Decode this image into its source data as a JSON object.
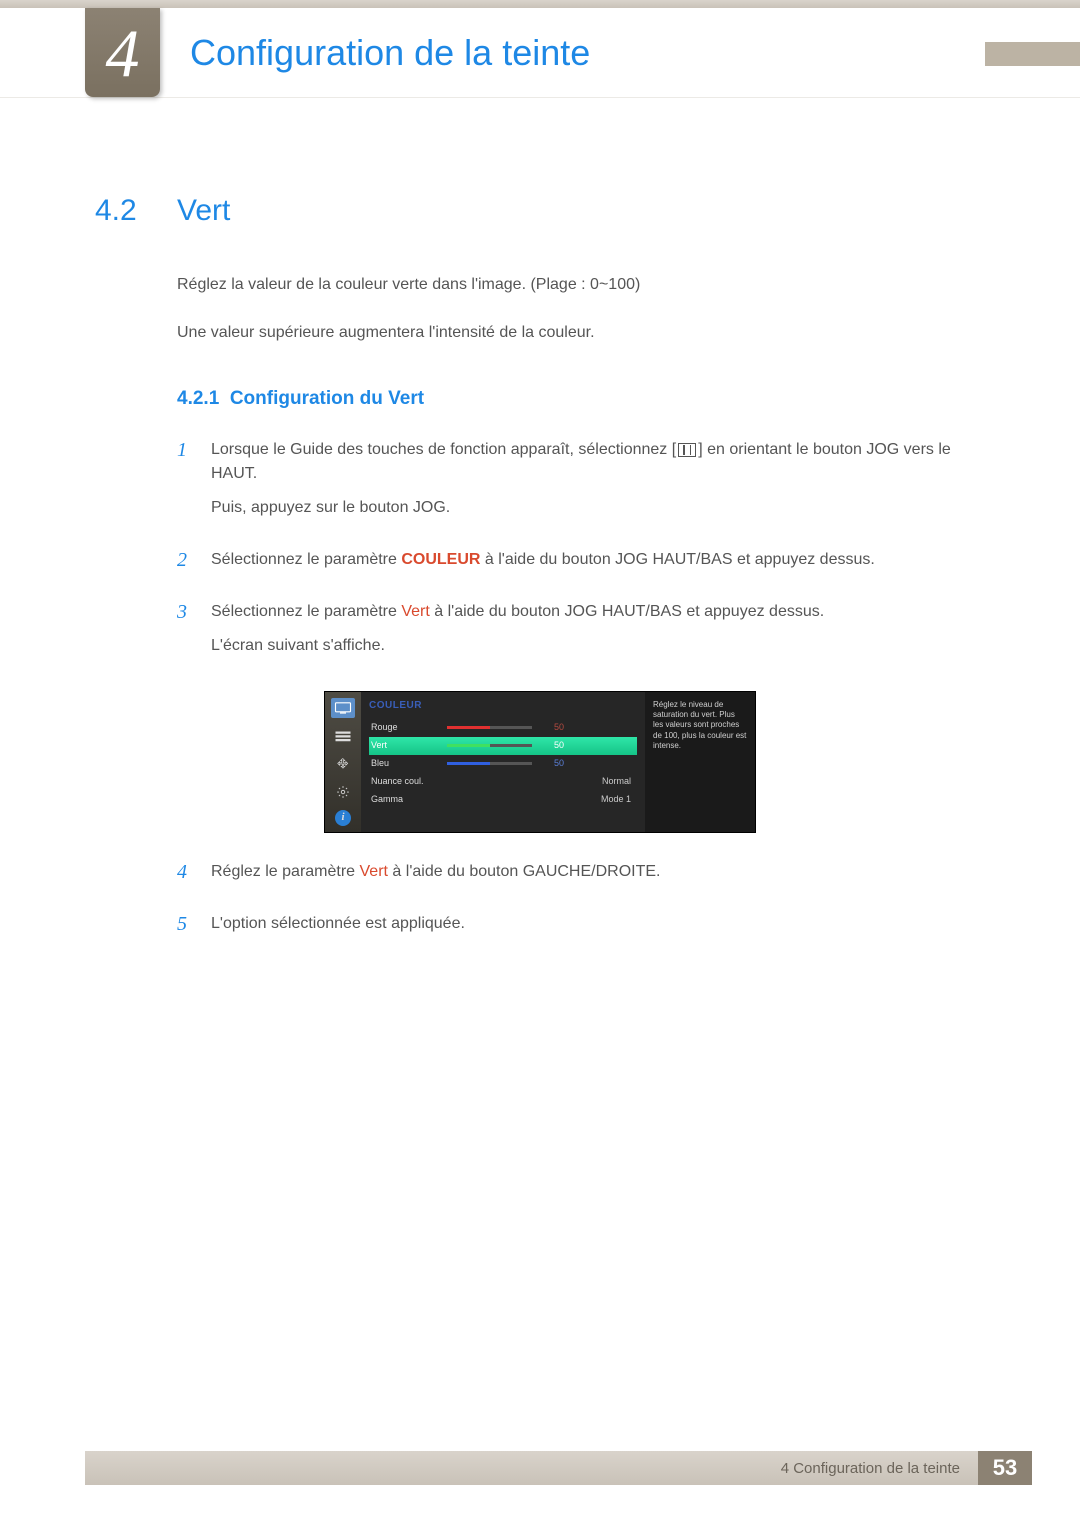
{
  "chapter": {
    "number": "4",
    "title": "Configuration de la teinte"
  },
  "section": {
    "number": "4.2",
    "title": "Vert"
  },
  "intro": {
    "line1": "Réglez la valeur de la couleur verte dans l'image. (Plage : 0~100)",
    "line2": "Une valeur supérieure augmentera l'intensité de la couleur."
  },
  "subsection": {
    "number": "4.2.1",
    "title": "Configuration du Vert"
  },
  "steps": {
    "s1a_pre": "Lorsque le Guide des touches de fonction apparaît, sélectionnez [",
    "s1a_post": "] en orientant le bouton JOG vers le HAUT.",
    "s1b": "Puis, appuyez sur le bouton JOG.",
    "s2_pre": "Sélectionnez le paramètre ",
    "s2_kw": "COULEUR",
    "s2_post": " à l'aide du bouton JOG HAUT/BAS et appuyez dessus.",
    "s3_pre": "Sélectionnez le paramètre ",
    "s3_kw": "Vert",
    "s3_post": " à l'aide du bouton JOG HAUT/BAS et appuyez dessus.",
    "s3b": "L'écran suivant s'affiche.",
    "s4_pre": "Réglez le paramètre ",
    "s4_kw": "Vert",
    "s4_post": " à l'aide du bouton GAUCHE/DROITE.",
    "s5": "L'option sélectionnée est appliquée."
  },
  "osd": {
    "title": "COULEUR",
    "help": "Réglez le niveau de saturation du vert. Plus les valeurs sont proches de 100, plus la couleur est intense.",
    "rows": [
      {
        "label": "Rouge",
        "type": "bar",
        "value": 50,
        "color": "#e03030",
        "val_color": "#b34a40"
      },
      {
        "label": "Vert",
        "type": "bar",
        "value": 50,
        "color": "#40e060",
        "val_color": "#ffffff",
        "selected": true
      },
      {
        "label": "Bleu",
        "type": "bar",
        "value": 50,
        "color": "#3060e0",
        "val_color": "#5a7fd8"
      },
      {
        "label": "Nuance coul.",
        "type": "text",
        "text": "Normal"
      },
      {
        "label": "Gamma",
        "type": "text",
        "text": "Mode 1"
      }
    ]
  },
  "footer": {
    "text": "4 Configuration de la teinte",
    "page": "53"
  }
}
